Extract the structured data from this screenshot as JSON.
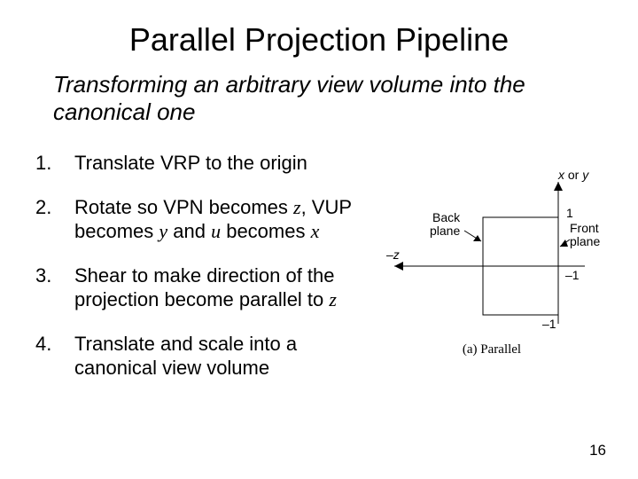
{
  "title": "Parallel Projection Pipeline",
  "subtitle": "Transforming an arbitrary view volume into the canonical one",
  "steps": [
    {
      "num": "1.",
      "text_parts": [
        {
          "t": "Translate VRP to the origin",
          "i": false
        }
      ]
    },
    {
      "num": "2.",
      "text_parts": [
        {
          "t": "Rotate so VPN becomes ",
          "i": false
        },
        {
          "t": "z",
          "i": true
        },
        {
          "t": ", VUP becomes ",
          "i": false
        },
        {
          "t": "y",
          "i": true
        },
        {
          "t": " and ",
          "i": false
        },
        {
          "t": "u",
          "i": true
        },
        {
          "t": " becomes ",
          "i": false
        },
        {
          "t": "x",
          "i": true
        }
      ]
    },
    {
      "num": "3.",
      "text_parts": [
        {
          "t": "Shear to make direction of the projection become parallel to ",
          "i": false
        },
        {
          "t": "z",
          "i": true
        }
      ]
    },
    {
      "num": "4.",
      "text_parts": [
        {
          "t": "Translate and scale into a canonical view volume",
          "i": false
        }
      ]
    }
  ],
  "diagram": {
    "axis_label_top": "x or y",
    "axis_label_left": "–z",
    "back_label": "Back\nplane",
    "front_label": "Front\nplane",
    "tick_top": "1",
    "tick_mid": "–1",
    "tick_bot": "–1",
    "caption": "(a) Parallel",
    "stroke": "#000000",
    "linewidth": 1
  },
  "page_number": "16",
  "colors": {
    "background": "#ffffff",
    "text": "#000000"
  }
}
